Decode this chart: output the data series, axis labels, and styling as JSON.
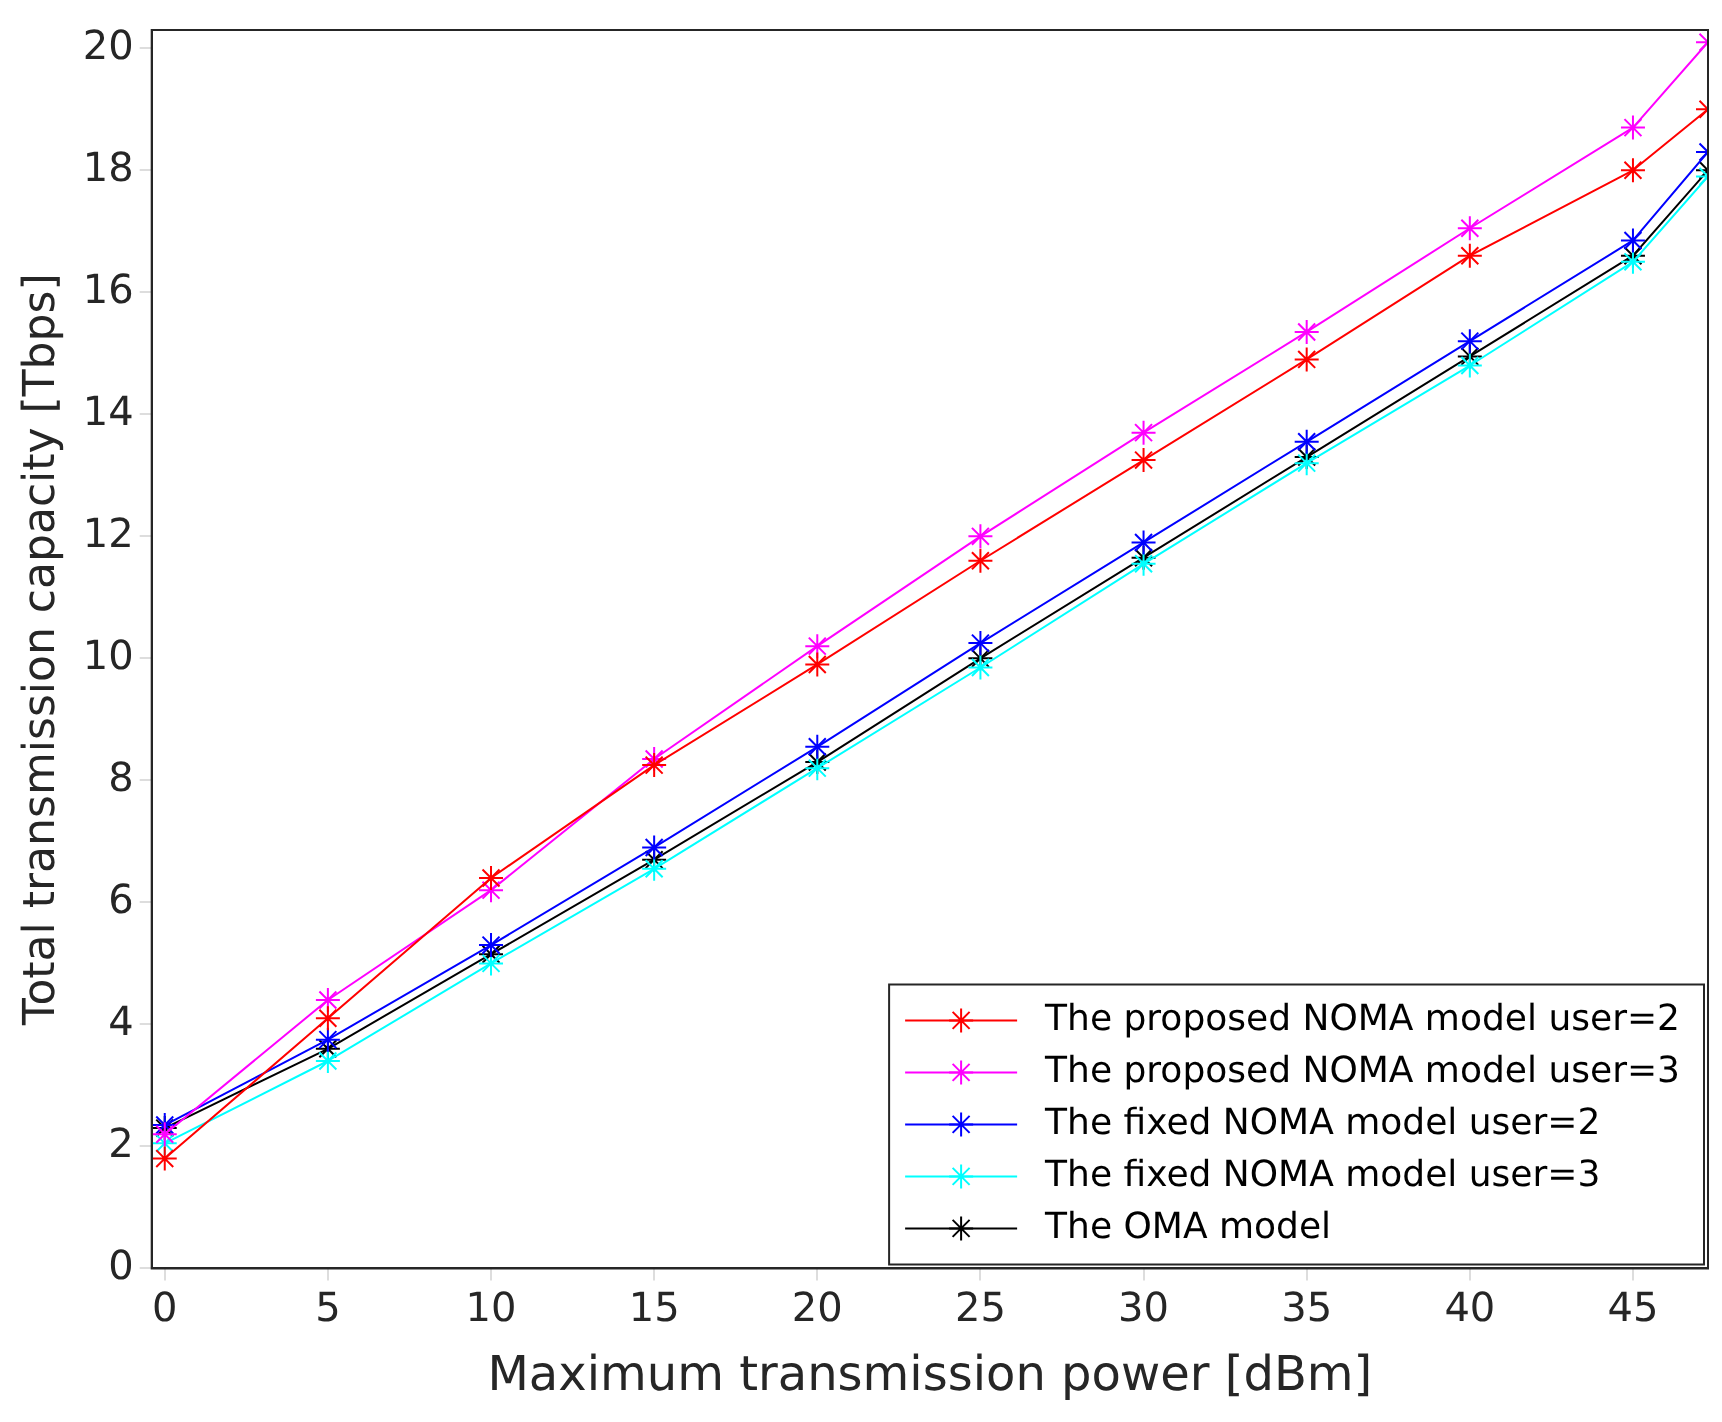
{
  "chart_data": {
    "type": "line",
    "xlabel": "Maximum transmission power [dBm]",
    "ylabel": "Total transmission capacity [Tbps]",
    "x": [
      0,
      5,
      10,
      15,
      20,
      25,
      30,
      35,
      40,
      45,
      47.3
    ],
    "series": [
      {
        "name": "The proposed NOMA model user=2",
        "color": "#ff0000",
        "values": [
          1.8,
          4.1,
          6.4,
          8.25,
          9.9,
          11.6,
          13.25,
          14.9,
          16.6,
          18.0,
          19.0
        ]
      },
      {
        "name": "The proposed NOMA model user=3",
        "color": "#ff00ff",
        "values": [
          2.2,
          4.4,
          6.2,
          8.35,
          10.2,
          12.0,
          13.7,
          15.35,
          17.05,
          18.7,
          20.1
        ]
      },
      {
        "name": "The fixed NOMA model user=2",
        "color": "#0000ff",
        "values": [
          2.35,
          3.75,
          5.3,
          6.9,
          8.55,
          10.25,
          11.9,
          13.55,
          15.2,
          16.85,
          18.3
        ]
      },
      {
        "name": "The fixed NOMA model user=3",
        "color": "#00ffff",
        "values": [
          2.05,
          3.4,
          5.0,
          6.55,
          8.2,
          9.85,
          11.55,
          13.2,
          14.8,
          16.5,
          17.9
        ]
      },
      {
        "name": "The OMA model",
        "color": "#000000",
        "values": [
          2.3,
          3.6,
          5.15,
          6.7,
          8.3,
          10.0,
          11.65,
          13.3,
          14.95,
          16.6,
          18.0
        ]
      }
    ],
    "xlim": [
      -0.4,
      47.3
    ],
    "xticks": [
      0,
      5,
      10,
      15,
      20,
      25,
      30,
      35,
      40,
      45
    ],
    "ylim": [
      0,
      20.3
    ],
    "yticks": [
      0,
      2,
      4,
      6,
      8,
      10,
      12,
      14,
      16,
      18,
      20
    ],
    "grid": false,
    "legend": "bottom right",
    "marker": "cross",
    "line_style": "solid"
  }
}
